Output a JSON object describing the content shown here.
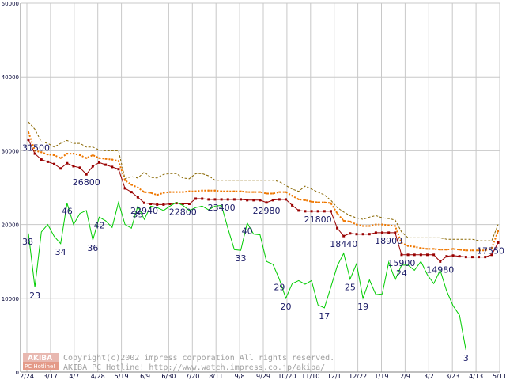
{
  "chart_data": {
    "type": "line",
    "ylim": [
      0,
      50000
    ],
    "yticks": [
      0,
      10000,
      20000,
      30000,
      40000,
      50000
    ],
    "grid": true,
    "x_tick_labels": [
      "2/24",
      "3/17",
      "4/7",
      "4/28",
      "5/19",
      "6/9",
      "6/30",
      "7/20",
      "8/11",
      "9/8",
      "9/29",
      "10/20",
      "11/10",
      "12/1",
      "12/22",
      "1/19",
      "2/9",
      "3/2",
      "3/23",
      "4/13",
      "5/11"
    ],
    "series": [
      {
        "color": "#990000",
        "style": "solid-square-markers",
        "values": [
          31500,
          29600,
          28800,
          28500,
          28200,
          27600,
          28300,
          27900,
          27700,
          26800,
          27900,
          28400,
          28100,
          27800,
          27500,
          24900,
          24400,
          23700,
          22940,
          22800,
          22700,
          22700,
          22800,
          22900,
          22800,
          22800,
          23500,
          23500,
          23400,
          23400,
          23400,
          23400,
          23400,
          23400,
          23300,
          23300,
          23300,
          22980,
          23300,
          23400,
          23400,
          22600,
          21900,
          21800,
          21800,
          21800,
          21800,
          21800,
          19500,
          18440,
          18800,
          18700,
          18700,
          18700,
          18900,
          18900,
          18900,
          18900,
          15900,
          15900,
          15900,
          15900,
          15900,
          15900,
          14980,
          15700,
          15800,
          15700,
          15600,
          15600,
          15600,
          15600,
          15900,
          17550
        ],
        "labels": [
          {
            "i": 0,
            "text": "31500"
          },
          {
            "i": 9,
            "text": "26800"
          },
          {
            "i": 18,
            "text": "22940"
          },
          {
            "i": 24,
            "text": "22800"
          },
          {
            "i": 30,
            "text": "23400"
          },
          {
            "i": 37,
            "text": "22980"
          },
          {
            "i": 45,
            "text": "21800"
          },
          {
            "i": 49,
            "text": "18440"
          },
          {
            "i": 56,
            "text": "18900"
          },
          {
            "i": 58,
            "text": "15900"
          },
          {
            "i": 64,
            "text": "14980"
          },
          {
            "i": 73,
            "text": "17550"
          }
        ]
      },
      {
        "color": "#ee7700",
        "style": "dotted",
        "values": [
          32500,
          30000,
          29800,
          29500,
          29400,
          29000,
          29600,
          29600,
          29400,
          29000,
          29400,
          29000,
          28900,
          28800,
          28600,
          26000,
          25400,
          25000,
          24400,
          24300,
          24000,
          24300,
          24400,
          24400,
          24400,
          24500,
          24500,
          24600,
          24600,
          24600,
          24500,
          24500,
          24500,
          24500,
          24400,
          24400,
          24400,
          24200,
          24200,
          24400,
          24400,
          23900,
          23400,
          23300,
          23100,
          23000,
          23000,
          22900,
          21500,
          20500,
          20400,
          20000,
          19800,
          19800,
          20000,
          20000,
          19900,
          19800,
          17500,
          17100,
          17000,
          16800,
          16700,
          16700,
          16600,
          16600,
          16700,
          16600,
          16500,
          16500,
          16500,
          16500,
          16800,
          19100
        ]
      },
      {
        "color": "#886600",
        "style": "dashed",
        "values": [
          33900,
          32900,
          31200,
          31000,
          30500,
          31000,
          31400,
          31000,
          31000,
          30500,
          30500,
          30100,
          30000,
          30000,
          30000,
          26200,
          26500,
          26300,
          27100,
          26400,
          26300,
          26800,
          26900,
          26900,
          26300,
          26200,
          26900,
          26900,
          26600,
          26000,
          26000,
          26000,
          26000,
          26000,
          26000,
          26000,
          26000,
          26000,
          26000,
          25800,
          25300,
          24800,
          24500,
          25200,
          24800,
          24400,
          24000,
          23300,
          22300,
          21700,
          21200,
          20900,
          20700,
          21000,
          21200,
          20900,
          20800,
          20600,
          19000,
          18200,
          18200,
          18200,
          18200,
          18200,
          18200,
          18000,
          18000,
          18000,
          18000,
          18000,
          17800,
          17800,
          17800,
          20000
        ]
      },
      {
        "color": "#00cc00",
        "style": "solid",
        "values": [
          18800,
          11500,
          19000,
          20000,
          18400,
          17400,
          22900,
          20000,
          21500,
          21900,
          17900,
          21000,
          20500,
          19600,
          23000,
          20000,
          19500,
          22500,
          20700,
          22500,
          22300,
          21900,
          22500,
          23000,
          22600,
          21900,
          22300,
          22500,
          22000,
          22500,
          22600,
          19500,
          16600,
          16500,
          20200,
          18700,
          18600,
          15000,
          14600,
          12600,
          10000,
          12000,
          12400,
          11900,
          12400,
          9100,
          8700,
          11500,
          14400,
          16100,
          12600,
          14700,
          10000,
          12500,
          10500,
          10600,
          14900,
          12500,
          14500,
          14500,
          13800,
          15000,
          13200,
          12000,
          13800,
          11000,
          9000,
          7700,
          3000
        ],
        "labels": [
          {
            "i": 0,
            "text": "38"
          },
          {
            "i": 1,
            "text": "23"
          },
          {
            "i": 5,
            "text": "34"
          },
          {
            "i": 6,
            "text": "46"
          },
          {
            "i": 10,
            "text": "36"
          },
          {
            "i": 11,
            "text": "42"
          },
          {
            "i": 17,
            "text": "39"
          },
          {
            "i": 33,
            "text": "33"
          },
          {
            "i": 34,
            "text": "40"
          },
          {
            "i": 39,
            "text": "29"
          },
          {
            "i": 40,
            "text": "20"
          },
          {
            "i": 46,
            "text": "17"
          },
          {
            "i": 50,
            "text": "25"
          },
          {
            "i": 52,
            "text": "19"
          },
          {
            "i": 58,
            "text": "24"
          },
          {
            "i": 68,
            "text": "3"
          }
        ]
      }
    ]
  },
  "logo": {
    "line1": "AKIBA",
    "line2": "PC Hotline!"
  },
  "copyright": {
    "line1": "Copyright(c)2002 impress corporation All rights reserved.",
    "line2": "AKIBA PC Hotline! http://www.watch.impress.co.jp/akiba/"
  }
}
